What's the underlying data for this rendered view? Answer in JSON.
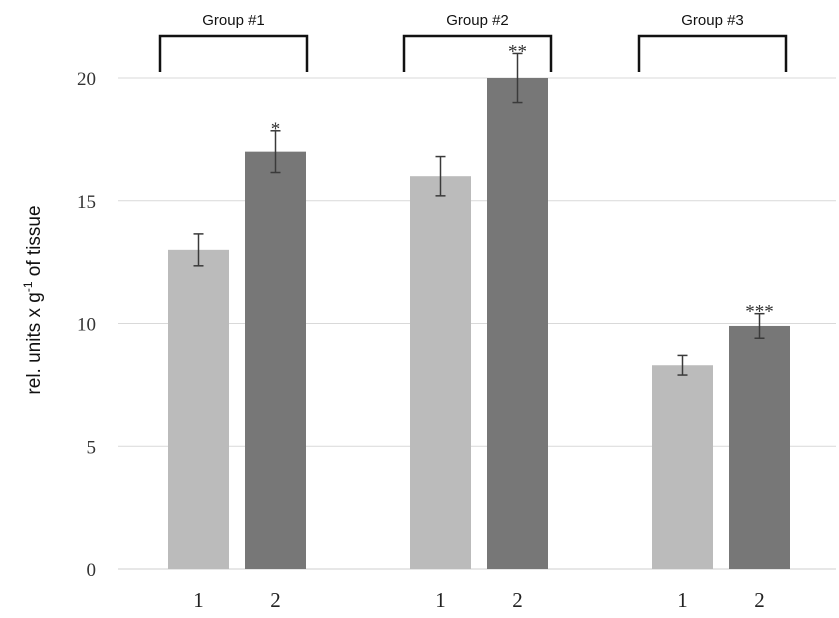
{
  "chart_data": {
    "type": "bar",
    "ylabel": {
      "before_sup": "rel. units x g",
      "sup": "-1",
      "after_sup": " of tissue"
    },
    "ylim": [
      0,
      21
    ],
    "y_ticks": [
      0,
      5,
      10,
      15,
      20
    ],
    "grid": true,
    "legend": "none",
    "groups": [
      {
        "label": "Group #1",
        "bars": [
          {
            "category": "1",
            "value": 13.0,
            "error": 0.65,
            "significance": "",
            "color": "#bbbbbb"
          },
          {
            "category": "2",
            "value": 17.0,
            "error": 0.85,
            "significance": "*",
            "color": "#777777"
          }
        ]
      },
      {
        "label": "Group #2",
        "bars": [
          {
            "category": "1",
            "value": 16.0,
            "error": 0.8,
            "significance": "",
            "color": "#bbbbbb"
          },
          {
            "category": "2",
            "value": 20.0,
            "error": 1.0,
            "significance": "**",
            "color": "#777777"
          }
        ]
      },
      {
        "label": "Group #3",
        "bars": [
          {
            "category": "1",
            "value": 8.3,
            "error": 0.4,
            "significance": "",
            "color": "#bbbbbb"
          },
          {
            "category": "2",
            "value": 9.9,
            "error": 0.5,
            "significance": "***",
            "color": "#777777"
          }
        ]
      }
    ]
  }
}
